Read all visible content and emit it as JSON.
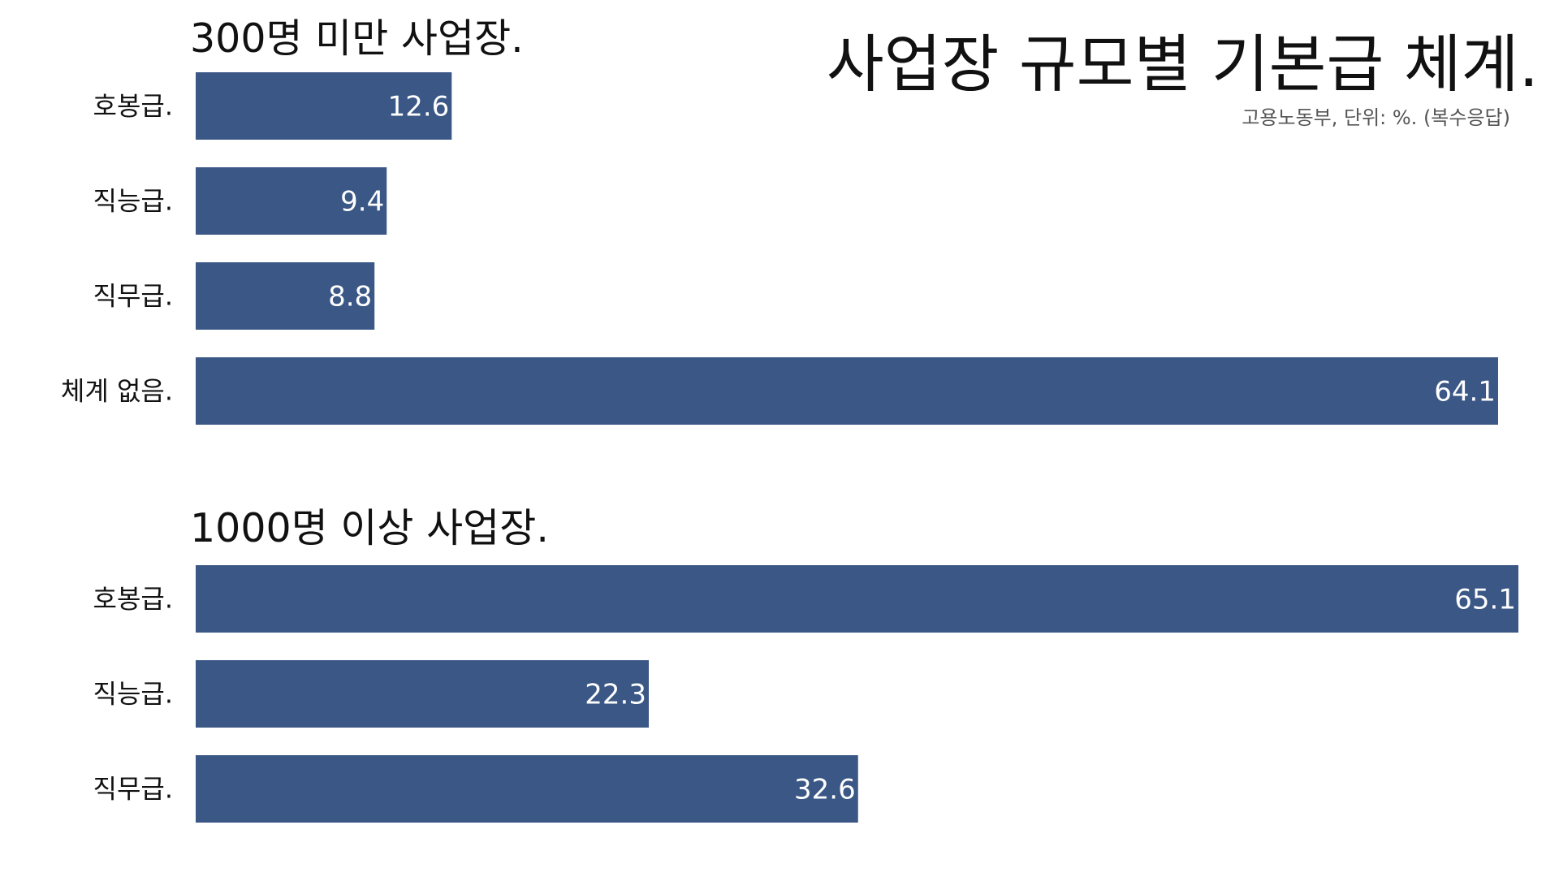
{
  "title": "사업장 규모별 기본급 체계.",
  "subtitle": "고용노동부, 단위: %. (복수응답)",
  "colors": {
    "bar": "#3a5786",
    "bar_label": "#ffffff",
    "text": "#111111",
    "subtitle": "#555555"
  },
  "chart_data": [
    {
      "type": "bar",
      "orientation": "horizontal",
      "title": "300명 미만 사업장.",
      "categories": [
        "호봉급.",
        "직능급.",
        "직무급.",
        "체계 없음."
      ],
      "values": [
        12.6,
        9.4,
        8.8,
        64.1
      ],
      "xlim": [
        0,
        65.1
      ],
      "grid": false,
      "legend": "none"
    },
    {
      "type": "bar",
      "orientation": "horizontal",
      "title": "1000명 이상 사업장.",
      "categories": [
        "호봉급.",
        "직능급.",
        "직무급."
      ],
      "values": [
        65.1,
        22.3,
        32.6
      ],
      "xlim": [
        0,
        65.1
      ],
      "grid": false,
      "legend": "none"
    }
  ]
}
